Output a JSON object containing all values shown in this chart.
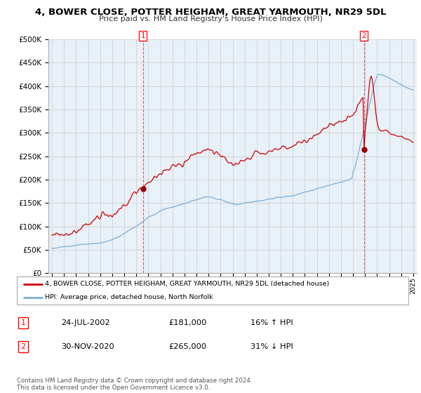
{
  "title": "4, BOWER CLOSE, POTTER HEIGHAM, GREAT YARMOUTH, NR29 5DL",
  "subtitle": "Price paid vs. HM Land Registry's House Price Index (HPI)",
  "legend_line1": "4, BOWER CLOSE, POTTER HEIGHAM, GREAT YARMOUTH, NR29 5DL (detached house)",
  "legend_line2": "HPI: Average price, detached house, North Norfolk",
  "sale1_date": "24-JUL-2002",
  "sale1_price": 181000,
  "sale1_hpi": "16% ↑ HPI",
  "sale2_date": "30-NOV-2020",
  "sale2_price": 265000,
  "sale2_hpi": "31% ↓ HPI",
  "copyright": "Contains HM Land Registry data © Crown copyright and database right 2024.\nThis data is licensed under the Open Government Licence v3.0.",
  "hpi_color": "#7aaed6",
  "price_color": "#cc0000",
  "sale_marker_color": "#990000",
  "dashed_line_color": "#cc0000",
  "background_color": "#ffffff",
  "grid_color": "#cccccc",
  "ylim": [
    0,
    500000
  ],
  "yticks": [
    0,
    50000,
    100000,
    150000,
    200000,
    250000,
    300000,
    350000,
    400000,
    450000,
    500000
  ],
  "sale1_x": 2002.56,
  "sale2_x": 2020.92,
  "xstart": 1995,
  "xend": 2025
}
